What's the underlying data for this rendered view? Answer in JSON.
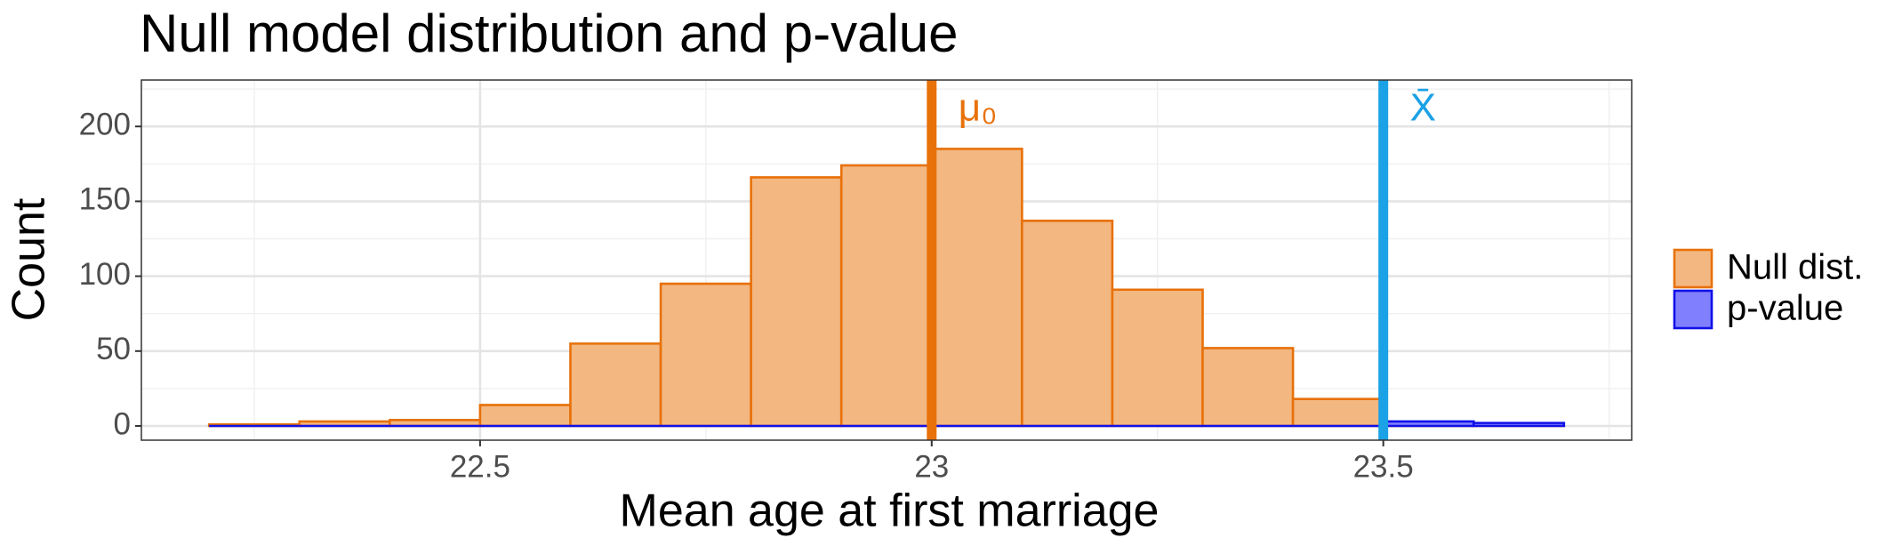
{
  "chart_data": {
    "type": "histogram",
    "title": "Null model distribution and p-value",
    "x_label": "Mean age at first marriage",
    "y_label": "Count",
    "bins": [
      22.2,
      22.3,
      22.4,
      22.5,
      22.6,
      22.7,
      22.8,
      22.9,
      23.0,
      23.1,
      23.2,
      23.3,
      23.4,
      23.5,
      23.6,
      23.7
    ],
    "series": [
      {
        "name": "Null dist.",
        "color": "#e8710a",
        "fill": "#f3b781",
        "values": [
          1,
          3,
          4,
          14,
          55,
          95,
          166,
          174,
          185,
          137,
          91,
          52,
          18,
          0,
          0
        ]
      },
      {
        "name": "p-value",
        "color": "#1010e8",
        "fill": "#8080ff",
        "values": [
          0,
          0,
          0,
          0,
          0,
          0,
          0,
          0,
          0,
          0,
          0,
          0,
          0,
          3,
          2
        ]
      }
    ],
    "vlines": [
      {
        "x": 23.0,
        "label": "μ₀",
        "color": "#e8710a"
      },
      {
        "x": 23.5,
        "label": "X̄",
        "color": "#1ba1e6"
      }
    ],
    "xlim": [
      22.125,
      23.775
    ],
    "xticks": [
      22.5,
      23.0,
      23.5
    ],
    "x_minor_ticks": [
      22.25,
      22.75,
      23.25,
      23.75
    ],
    "ylim": [
      -9.5,
      231
    ],
    "yticks": [
      0,
      50,
      100,
      150,
      200
    ],
    "y_minor_ticks": [
      25,
      75,
      125,
      175,
      225
    ],
    "grid": true,
    "legend": "right"
  }
}
